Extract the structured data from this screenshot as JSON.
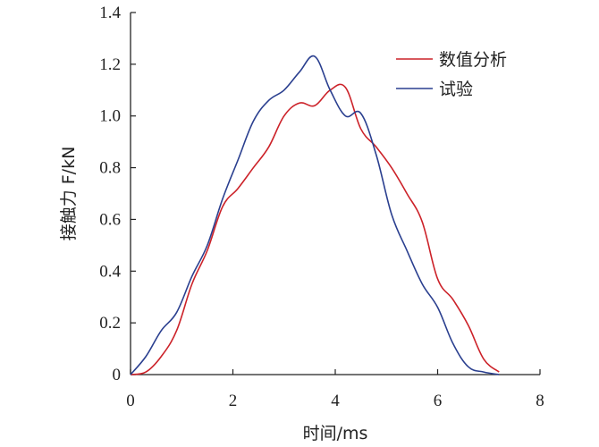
{
  "chart_data": {
    "type": "line",
    "title": "",
    "xlabel": "时间/ms",
    "ylabel": "接触力 F/kN",
    "xlim": [
      0,
      8
    ],
    "ylim": [
      0,
      1.4
    ],
    "xticks": [
      0,
      2,
      4,
      6,
      8
    ],
    "yticks": [
      0,
      0.2,
      0.4,
      0.6,
      0.8,
      1.0,
      1.2,
      1.4
    ],
    "ytick_labels": [
      "0",
      "0.2",
      "0.4",
      "0.6",
      "0.8",
      "1.0",
      "1.2",
      "1.4"
    ],
    "grid": false,
    "legend_position": "top-right",
    "series": [
      {
        "name": "数值分析",
        "color": "#cc2229",
        "x": [
          0,
          0.3,
          0.6,
          0.9,
          1.2,
          1.5,
          1.8,
          2.1,
          2.4,
          2.7,
          3.0,
          3.3,
          3.6,
          3.9,
          4.2,
          4.5,
          4.8,
          5.1,
          5.4,
          5.7,
          6.0,
          6.3,
          6.6,
          6.9,
          7.2
        ],
        "y": [
          0,
          0.01,
          0.07,
          0.17,
          0.35,
          0.48,
          0.65,
          0.72,
          0.8,
          0.88,
          1.0,
          1.05,
          1.04,
          1.1,
          1.11,
          0.95,
          0.88,
          0.8,
          0.7,
          0.59,
          0.37,
          0.29,
          0.19,
          0.06,
          0.01
        ]
      },
      {
        "name": "试验",
        "color": "#2a3f8f",
        "x": [
          0,
          0.3,
          0.6,
          0.9,
          1.2,
          1.5,
          1.8,
          2.1,
          2.4,
          2.7,
          3.0,
          3.3,
          3.6,
          3.9,
          4.2,
          4.5,
          4.8,
          5.1,
          5.4,
          5.7,
          6.0,
          6.3,
          6.6,
          6.9,
          7.2
        ],
        "y": [
          0,
          0.07,
          0.17,
          0.24,
          0.38,
          0.5,
          0.68,
          0.83,
          0.98,
          1.06,
          1.1,
          1.17,
          1.23,
          1.1,
          1.0,
          1.01,
          0.85,
          0.62,
          0.48,
          0.35,
          0.26,
          0.12,
          0.03,
          0.01,
          0.0
        ]
      }
    ]
  }
}
